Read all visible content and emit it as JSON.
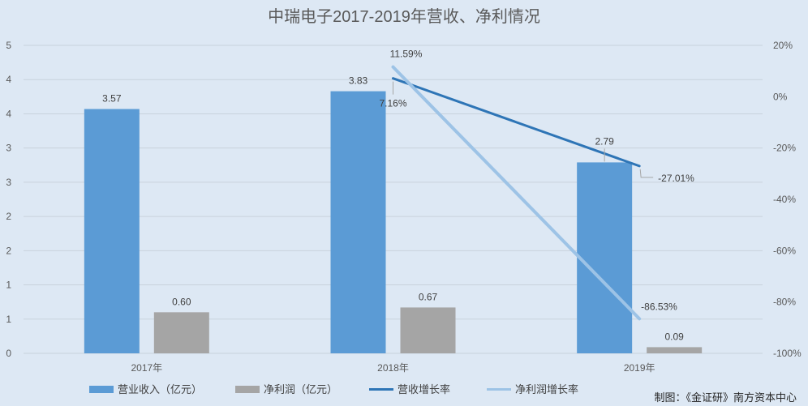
{
  "chart_data": {
    "type": "bar",
    "title": "中瑞电子2017-2019年营收、净利情况",
    "categories": [
      "2017年",
      "2018年",
      "2019年"
    ],
    "ylim": [
      0,
      4.5
    ],
    "yticks": [
      0,
      0.5,
      1,
      1.5,
      2,
      2.5,
      3,
      3.5,
      4,
      4.5
    ],
    "ytick_labels": [
      "0",
      "1",
      "1",
      "2",
      "2",
      "3",
      "3",
      "4",
      "4",
      "5"
    ],
    "y2lim": [
      -100,
      20
    ],
    "y2ticks": [
      -100,
      -80,
      -60,
      -40,
      -20,
      0,
      20
    ],
    "y2tick_labels": [
      "-100%",
      "-80%",
      "-60%",
      "-40%",
      "-20%",
      "0%",
      "20%"
    ],
    "grid": true,
    "legend": "bottom",
    "series": [
      {
        "name": "营业收入（亿元）",
        "type": "bar",
        "axis": "left",
        "color": "#5b9bd5",
        "values": [
          3.57,
          3.83,
          2.79
        ],
        "labels": [
          "3.57",
          "3.83",
          "2.79"
        ]
      },
      {
        "name": "净利润（亿元）",
        "type": "bar",
        "axis": "left",
        "color": "#a5a5a5",
        "values": [
          0.6,
          0.67,
          0.09
        ],
        "labels": [
          "0.60",
          "0.67",
          "0.09"
        ]
      },
      {
        "name": "营收增长率",
        "type": "line",
        "axis": "right",
        "color": "#2e75b6",
        "values": [
          null,
          7.16,
          -27.01
        ],
        "labels": [
          null,
          "7.16%",
          "-27.01%"
        ]
      },
      {
        "name": "净利润增长率",
        "type": "line",
        "axis": "right",
        "color": "#9dc3e6",
        "values": [
          null,
          11.59,
          -86.53
        ],
        "labels": [
          null,
          "11.59%",
          "-86.53%"
        ]
      }
    ]
  },
  "credit": "制图：《金证研》南方资本中心"
}
